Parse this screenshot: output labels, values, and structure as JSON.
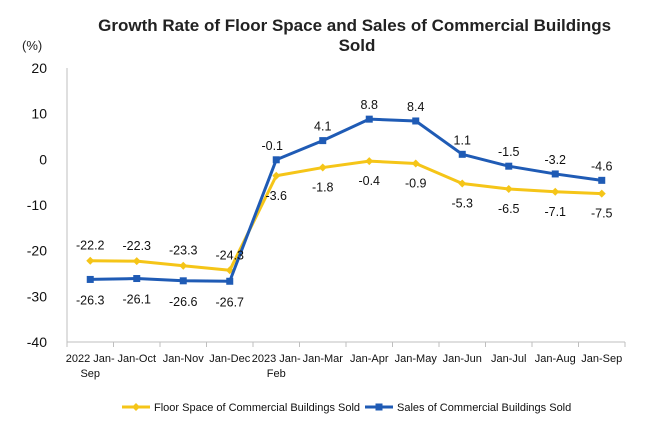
{
  "chart_data": {
    "type": "line",
    "title": "Growth Rate of Floor Space and Sales of Commercial Buildings Sold",
    "unit_label": "(%)",
    "categories": [
      "2022 Jan-Sep",
      "Jan-Oct",
      "Jan-Nov",
      "Jan-Dec",
      "2023 Jan-Feb",
      "Jan-Mar",
      "Jan-Apr",
      "Jan-May",
      "Jan-Jun",
      "Jan-Jul",
      "Jan-Aug",
      "Jan-Sep"
    ],
    "ylim": [
      -40,
      20
    ],
    "yticks": [
      20,
      10,
      0,
      -10,
      -20,
      -30,
      -40
    ],
    "grid": false,
    "legend_position": "bottom",
    "series": [
      {
        "name": "Floor Space of Commercial Buildings Sold",
        "color": "#F5C518",
        "marker": "diamond",
        "values": [
          -22.2,
          -22.3,
          -23.3,
          -24.3,
          -3.6,
          -1.8,
          -0.4,
          -0.9,
          -5.3,
          -6.5,
          -7.1,
          -7.5
        ]
      },
      {
        "name": "Sales of Commercial Buildings Sold",
        "color": "#1F5BB5",
        "marker": "square",
        "values": [
          -26.3,
          -26.1,
          -26.6,
          -26.7,
          -0.1,
          4.1,
          8.8,
          8.4,
          1.1,
          -1.5,
          -3.2,
          -4.6
        ]
      }
    ]
  }
}
